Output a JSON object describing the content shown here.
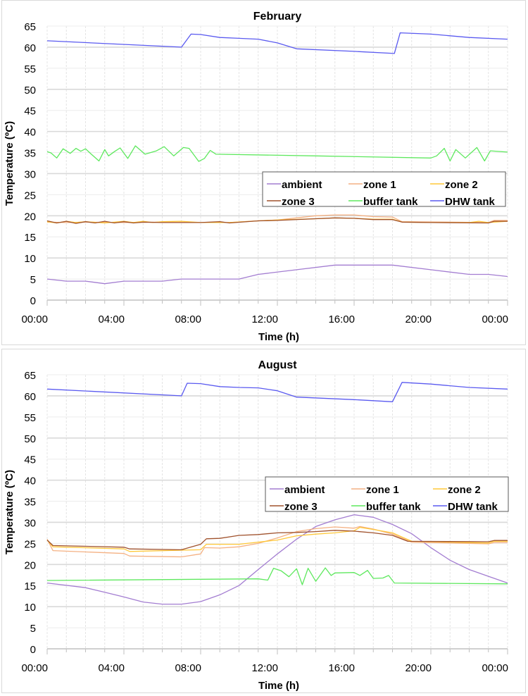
{
  "chart_data": [
    {
      "type": "line",
      "title": "February",
      "xlabel": "Time (h)",
      "ylabel": "Temperature (ºC)",
      "ylim": [
        0,
        65
      ],
      "yticks": [
        0,
        5,
        10,
        15,
        20,
        25,
        30,
        35,
        40,
        45,
        50,
        55,
        60,
        65
      ],
      "xlim_hours": [
        0,
        24
      ],
      "xtick_hours": [
        0,
        4,
        8,
        12,
        16,
        20,
        24
      ],
      "xtick_labels": [
        "00:00",
        "04:00",
        "08:00",
        "12:00",
        "16:00",
        "20:00",
        "00:00"
      ],
      "grid": true,
      "legend_placement": "center-right",
      "series": [
        {
          "name": "ambient",
          "color": "#a37dd1",
          "x": [
            0,
            1,
            2,
            3,
            4,
            6,
            7,
            10,
            11,
            13,
            15,
            18,
            20,
            22,
            23,
            24
          ],
          "y": [
            5.0,
            4.5,
            4.5,
            3.9,
            4.5,
            4.5,
            5.0,
            5.0,
            6.1,
            7.2,
            8.3,
            8.3,
            7.2,
            6.1,
            6.1,
            5.6
          ]
        },
        {
          "name": "zone 1",
          "color": "#f4b183",
          "x": [
            0,
            1,
            2,
            4,
            6,
            8,
            9.5,
            11,
            12,
            14,
            15,
            16,
            17,
            18,
            18.5,
            23,
            23.3,
            24
          ],
          "y": [
            18.5,
            18.4,
            18.5,
            18.4,
            18.5,
            18.4,
            18.4,
            18.8,
            19.0,
            20.0,
            20.2,
            20.2,
            19.8,
            19.7,
            18.6,
            18.4,
            18.9,
            18.9
          ]
        },
        {
          "name": "zone 2",
          "color": "#ffc839",
          "x": [
            0,
            0.5,
            1,
            1.5,
            2,
            3,
            4,
            4.5,
            5,
            5.5,
            6,
            7,
            8,
            9.5,
            11,
            12,
            14,
            15,
            16,
            17,
            18,
            18.5,
            20,
            22,
            22.5,
            23,
            24
          ],
          "y": [
            18.6,
            18.3,
            18.7,
            18.4,
            18.6,
            18.3,
            18.7,
            18.4,
            18.7,
            18.4,
            18.6,
            18.7,
            18.4,
            18.4,
            18.8,
            19.0,
            19.3,
            19.5,
            19.4,
            19.2,
            19.2,
            18.5,
            18.4,
            18.4,
            18.7,
            18.4,
            18.7
          ]
        },
        {
          "name": "zone 3",
          "color": "#a0522d",
          "x": [
            0,
            0.5,
            1,
            1.5,
            2,
            2.5,
            3,
            3.5,
            4,
            4.5,
            5,
            6,
            8,
            9,
            9.5,
            11,
            12,
            14,
            15,
            16,
            17,
            18,
            18.5,
            20,
            23,
            23.3,
            24
          ],
          "y": [
            18.8,
            18.3,
            18.7,
            18.2,
            18.6,
            18.3,
            18.7,
            18.3,
            18.6,
            18.3,
            18.5,
            18.4,
            18.4,
            18.6,
            18.3,
            18.8,
            18.9,
            19.3,
            19.5,
            19.4,
            19.1,
            19.1,
            18.5,
            18.4,
            18.3,
            18.7,
            18.7
          ]
        },
        {
          "name": "buffer tank",
          "color": "#5ee85e",
          "x": [
            0,
            0.2,
            0.5,
            0.83,
            1.2,
            1.5,
            1.75,
            2,
            2.3,
            2.7,
            3.0,
            3.2,
            3.5,
            3.8,
            4.2,
            4.6,
            5.1,
            5.4,
            5.7,
            6.1,
            6.6,
            7.1,
            7.4,
            7.9,
            8.2,
            8.5,
            8.8,
            14,
            20,
            20.3,
            20.7,
            21.0,
            21.3,
            21.8,
            22.4,
            22.8,
            23.1,
            24
          ],
          "y": [
            35.2,
            34.9,
            33.7,
            35.9,
            34.8,
            36.0,
            35.3,
            35.9,
            34.6,
            33.0,
            35.7,
            34.2,
            35.2,
            36.1,
            33.6,
            36.6,
            34.6,
            35.0,
            35.4,
            36.4,
            34.2,
            36.2,
            36.0,
            32.9,
            33.6,
            35.5,
            34.6,
            34.2,
            33.7,
            34.2,
            36.0,
            33.0,
            35.7,
            33.7,
            36.2,
            33.0,
            35.4,
            35.1
          ]
        },
        {
          "name": "DHW tank",
          "color": "#5a5af0",
          "x": [
            0,
            7,
            7.5,
            8,
            9,
            10,
            11,
            12,
            13,
            16,
            18.1,
            18.4,
            20,
            22,
            24
          ],
          "y": [
            61.5,
            60.0,
            63.1,
            63.0,
            62.3,
            62.1,
            61.9,
            61.0,
            59.6,
            59.0,
            58.5,
            63.4,
            63.1,
            62.3,
            61.9
          ]
        }
      ]
    },
    {
      "type": "line",
      "title": "August",
      "xlabel": "Time (h)",
      "ylabel": "Temperature (ºC)",
      "ylim": [
        0,
        65
      ],
      "yticks": [
        0,
        5,
        10,
        15,
        20,
        25,
        30,
        35,
        40,
        45,
        50,
        55,
        60,
        65
      ],
      "xlim_hours": [
        0,
        24
      ],
      "xtick_hours": [
        0,
        4,
        8,
        12,
        16,
        20,
        24
      ],
      "xtick_labels": [
        "00:00",
        "04:00",
        "08:00",
        "12:00",
        "16:00",
        "20:00",
        "00:00"
      ],
      "grid": true,
      "legend_placement": "center-right",
      "series": [
        {
          "name": "ambient",
          "color": "#a37dd1",
          "x": [
            0,
            2,
            3,
            4,
            5,
            6,
            7,
            8,
            9,
            10,
            11,
            12,
            13,
            14,
            15,
            16,
            17,
            18,
            19,
            20,
            21,
            22,
            23,
            24
          ],
          "y": [
            15.6,
            14.5,
            13.4,
            12.3,
            11.1,
            10.6,
            10.6,
            11.2,
            12.8,
            15.0,
            18.8,
            22.5,
            26.0,
            29.0,
            30.6,
            31.8,
            31.2,
            29.5,
            27.3,
            24.0,
            21.0,
            18.8,
            17.2,
            15.6
          ]
        },
        {
          "name": "zone 1",
          "color": "#f4b183",
          "x": [
            0,
            0.3,
            4,
            4.3,
            7,
            8,
            8.2,
            9,
            10,
            11,
            12,
            13,
            14,
            15,
            16,
            16.3,
            17,
            18,
            19,
            23,
            23.3,
            24
          ],
          "y": [
            26.0,
            23.3,
            22.6,
            22.0,
            21.8,
            22.5,
            24.0,
            23.9,
            24.2,
            25.0,
            26.3,
            27.8,
            28.5,
            28.9,
            28.6,
            29.0,
            28.4,
            27.2,
            25.3,
            24.9,
            25.2,
            25.2
          ]
        },
        {
          "name": "zone 2",
          "color": "#ffc839",
          "x": [
            0,
            0.3,
            4,
            4.3,
            8,
            8.3,
            10,
            12,
            13,
            14,
            15,
            16,
            16.3,
            17,
            18,
            19,
            23,
            23.3,
            24
          ],
          "y": [
            25.8,
            24.2,
            23.7,
            23.1,
            23.5,
            24.8,
            24.8,
            25.8,
            26.8,
            27.2,
            27.5,
            28.0,
            28.8,
            28.3,
            27.5,
            25.5,
            25.1,
            25.5,
            25.5
          ]
        },
        {
          "name": "zone 3",
          "color": "#a0522d",
          "x": [
            0,
            0.3,
            4,
            4.3,
            7,
            8,
            8.3,
            9,
            10,
            11,
            12,
            13,
            14,
            15,
            16,
            17,
            18,
            18.8,
            23,
            23.3,
            24
          ],
          "y": [
            25.8,
            24.5,
            24.1,
            23.7,
            23.5,
            24.8,
            26.1,
            26.2,
            26.9,
            27.1,
            27.5,
            27.6,
            27.8,
            28.1,
            27.9,
            27.5,
            26.9,
            25.5,
            25.4,
            25.7,
            25.7
          ]
        },
        {
          "name": "buffer tank",
          "color": "#5ee85e",
          "x": [
            0,
            11,
            11.5,
            11.8,
            12.2,
            12.6,
            13.0,
            13.3,
            13.6,
            14.0,
            14.5,
            14.8,
            15.0,
            16.0,
            16.3,
            16.7,
            17.0,
            17.5,
            17.8,
            18.1,
            24
          ],
          "y": [
            16.2,
            16.6,
            16.3,
            19.1,
            18.5,
            17.1,
            19.0,
            15.2,
            19.1,
            16.0,
            19.2,
            17.4,
            18.0,
            18.1,
            17.4,
            18.6,
            16.7,
            16.8,
            17.4,
            15.6,
            15.4
          ]
        },
        {
          "name": "DHW tank",
          "color": "#5a5af0",
          "x": [
            0,
            7,
            7.3,
            8,
            9,
            10,
            11,
            12,
            13,
            16,
            18,
            18.5,
            20,
            22,
            24
          ],
          "y": [
            61.6,
            60.0,
            63.0,
            62.9,
            62.2,
            62.0,
            61.9,
            61.2,
            59.7,
            59.1,
            58.6,
            63.2,
            62.8,
            62.0,
            61.6
          ]
        }
      ]
    }
  ]
}
